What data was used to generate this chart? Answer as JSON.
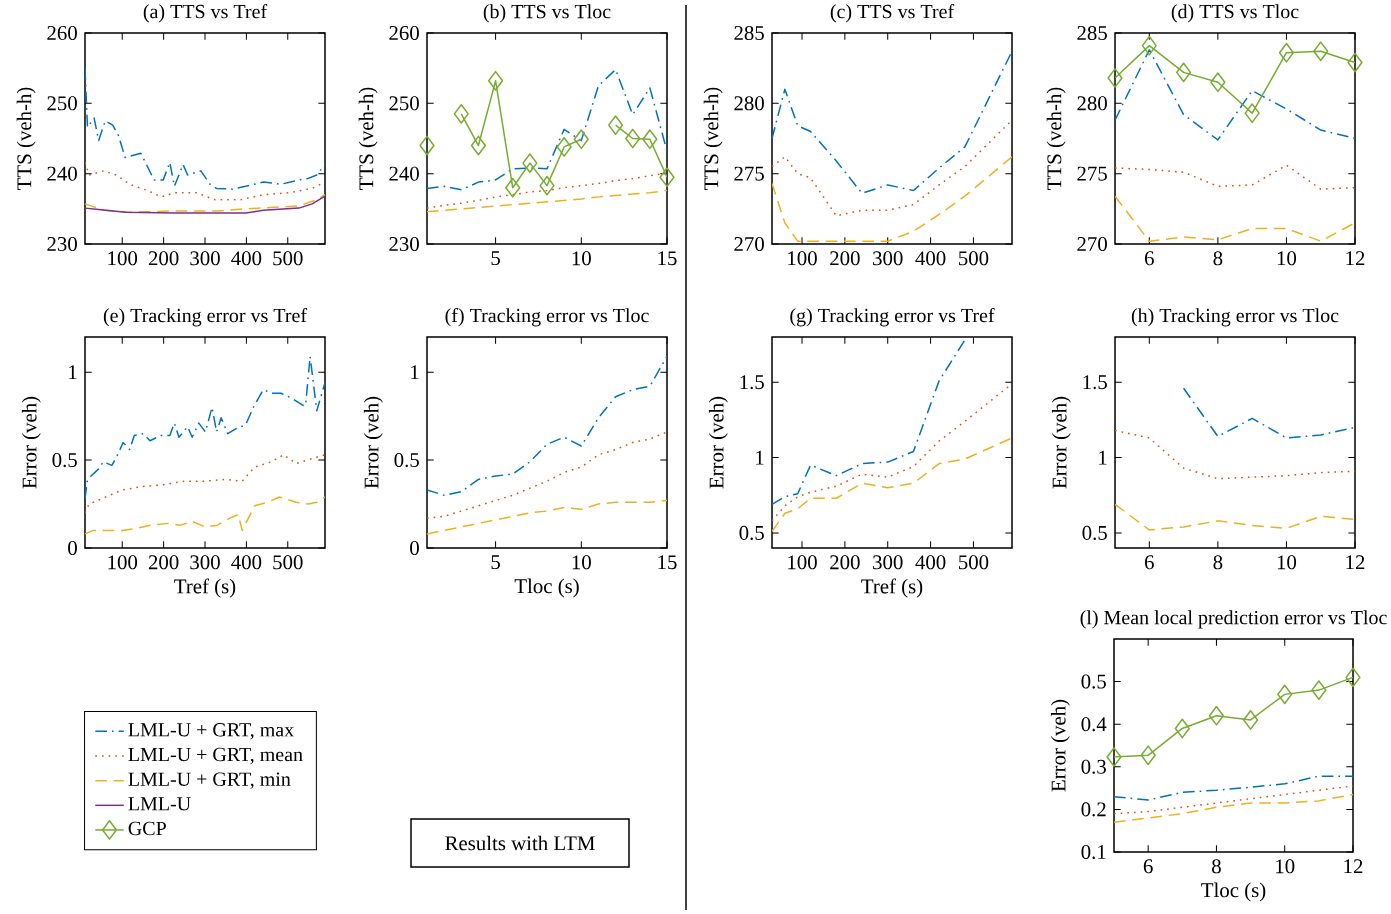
{
  "chart_data": [
    {
      "type": "line",
      "title": "(a) TTS vs Tref",
      "ylabel": "TTS (veh-h)",
      "xlim": [
        10,
        590
      ],
      "xticks": [
        100,
        200,
        300,
        400,
        500
      ],
      "ylim": [
        230,
        260
      ],
      "yticks": [
        230,
        240,
        250,
        260
      ],
      "series": [
        {
          "name": "LML-U + GRT, max",
          "color": "#0072bd",
          "line_style": "dashdot",
          "x": [
            10,
            16,
            32,
            43,
            59,
            77,
            91,
            107,
            145,
            177,
            199,
            215,
            226,
            247,
            258,
            290,
            312,
            328,
            366,
            398,
            441,
            484,
            527,
            548,
            570,
            590
          ],
          "values": [
            255.0,
            246.6,
            247.9,
            244.7,
            247.5,
            246.9,
            245.4,
            242.3,
            242.9,
            239.1,
            239.1,
            241.6,
            238.2,
            241.3,
            239.8,
            240.4,
            238.5,
            237.9,
            237.8,
            238.2,
            238.8,
            238.5,
            239.1,
            239.3,
            239.8,
            241.3
          ]
        },
        {
          "name": "LML-U + GRT, mean",
          "color": "#d95319",
          "line_style": "dotted",
          "x": [
            10,
            20,
            55,
            86,
            118,
            161,
            194,
            226,
            280,
            323,
            387,
            441,
            505,
            559,
            590
          ],
          "values": [
            241.6,
            239.8,
            240.4,
            239.8,
            238.5,
            237.6,
            236.7,
            237.3,
            237.3,
            236.3,
            236.3,
            237.0,
            237.3,
            237.9,
            238.8
          ]
        },
        {
          "name": "LML-U + GRT, min",
          "color": "#edb120",
          "line_style": "dashed",
          "x": [
            10,
            55,
            118,
            226,
            333,
            398,
            527,
            570,
            590
          ],
          "values": [
            235.7,
            234.8,
            234.5,
            234.7,
            234.7,
            235.0,
            235.4,
            236.3,
            237.0
          ]
        },
        {
          "name": "LML-U",
          "color": "#7e2f8e",
          "line_style": "solid",
          "x": [
            10,
            43,
            108,
            226,
            398,
            441,
            527,
            559,
            590
          ],
          "values": [
            235.1,
            234.9,
            234.5,
            234.4,
            234.4,
            234.8,
            235.1,
            235.7,
            236.8
          ]
        }
      ]
    },
    {
      "type": "line",
      "title": "(b) TTS vs Tloc",
      "ylabel": "TTS (veh-h)",
      "xlim": [
        1,
        15
      ],
      "xticks": [
        5,
        10,
        15
      ],
      "ylim": [
        230,
        260
      ],
      "yticks": [
        230,
        240,
        250,
        260
      ],
      "legend": "bottom left",
      "x": [
        1,
        2,
        3,
        4,
        5,
        6,
        7,
        8,
        9,
        10,
        11,
        12,
        13,
        14,
        15
      ],
      "series": [
        {
          "color": "#0072bd",
          "line_style": "dashdot",
          "values": [
            237.9,
            238.2,
            237.7,
            238.8,
            239.1,
            240.7,
            240.8,
            240.7,
            246.3,
            244.7,
            252.5,
            254.8,
            248.4,
            252.2,
            243.2
          ]
        },
        {
          "color": "#d95319",
          "line_style": "dotted",
          "values": [
            235.1,
            235.5,
            235.8,
            236.2,
            236.7,
            237.0,
            237.4,
            237.6,
            238.0,
            238.3,
            238.6,
            239.0,
            239.3,
            239.7,
            240.1
          ]
        },
        {
          "color": "#edb120",
          "line_style": "dashed",
          "values": [
            234.6,
            234.8,
            235.0,
            235.2,
            235.4,
            235.6,
            235.8,
            236.0,
            236.2,
            236.4,
            236.7,
            236.9,
            237.1,
            237.3,
            237.6
          ]
        },
        {
          "name": "GCP",
          "color": "#77ac30",
          "line_style": "solid",
          "marker": "diamond",
          "values": [
            244.0,
            null,
            248.5,
            244.0,
            253.2,
            238.0,
            241.5,
            238.3,
            243.8,
            244.9,
            null,
            246.9,
            245.0,
            244.9,
            239.5
          ]
        }
      ]
    },
    {
      "type": "line",
      "title": "(c) TTS vs Tref",
      "ylabel": "TTS (veh-h)",
      "xlim": [
        30,
        590
      ],
      "xticks": [
        100,
        200,
        300,
        400,
        500
      ],
      "ylim": [
        270,
        285
      ],
      "yticks": [
        270,
        275,
        280,
        285
      ],
      "series": [
        {
          "color": "#0072bd",
          "line_style": "dashdot",
          "x": [
            30,
            60,
            90,
            120,
            180,
            240,
            300,
            360,
            420,
            480,
            590
          ],
          "values": [
            277.5,
            281.0,
            278.4,
            278.0,
            275.9,
            273.6,
            274.2,
            273.8,
            275.4,
            276.9,
            283.7
          ]
        },
        {
          "color": "#d95319",
          "line_style": "dotted",
          "x": [
            30,
            60,
            90,
            120,
            180,
            240,
            300,
            360,
            420,
            480,
            590
          ],
          "values": [
            275.5,
            276.2,
            275.0,
            274.7,
            272.0,
            272.4,
            272.4,
            272.8,
            274.2,
            275.5,
            278.8
          ]
        },
        {
          "color": "#edb120",
          "line_style": "dashed",
          "x": [
            30,
            60,
            90,
            120,
            180,
            240,
            300,
            360,
            420,
            480,
            590
          ],
          "values": [
            274.3,
            271.5,
            270.2,
            270.2,
            270.2,
            270.2,
            270.2,
            270.9,
            272.1,
            273.4,
            276.2
          ]
        }
      ]
    },
    {
      "type": "line",
      "title": "(d) TTS vs Tloc",
      "ylabel": "TTS (veh-h)",
      "xlim": [
        5,
        12
      ],
      "xticks": [
        6,
        8,
        10,
        12
      ],
      "ylim": [
        270,
        285
      ],
      "yticks": [
        270,
        275,
        280,
        285
      ],
      "x": [
        5,
        6,
        7,
        8,
        9,
        10,
        11,
        12
      ],
      "series": [
        {
          "color": "#0072bd",
          "line_style": "dashdot",
          "values": [
            278.8,
            283.8,
            279.2,
            277.4,
            280.9,
            279.6,
            278.1,
            277.5
          ]
        },
        {
          "color": "#d95319",
          "line_style": "dotted",
          "values": [
            275.4,
            275.3,
            275.1,
            274.1,
            274.2,
            275.6,
            273.9,
            274.0
          ]
        },
        {
          "color": "#edb120",
          "line_style": "dashed",
          "values": [
            273.4,
            270.2,
            270.5,
            270.3,
            271.1,
            271.1,
            270.2,
            271.5
          ]
        },
        {
          "color": "#77ac30",
          "line_style": "solid",
          "marker": "diamond",
          "values": [
            281.8,
            284.1,
            282.2,
            281.5,
            279.3,
            283.6,
            283.7,
            282.9
          ]
        }
      ]
    },
    {
      "type": "line",
      "title": "(e) Tracking error vs Tref",
      "xlabel": "Tref (s)",
      "ylabel": "Error (veh)",
      "xlim": [
        10,
        590
      ],
      "xticks": [
        100,
        200,
        300,
        400,
        500
      ],
      "ylim": [
        0,
        1.2
      ],
      "yticks": [
        0,
        0.5,
        1
      ],
      "series": [
        {
          "color": "#0072bd",
          "line_style": "dashdot",
          "x": [
            10,
            16,
            43,
            54,
            75,
            91,
            102,
            118,
            129,
            151,
            167,
            194,
            215,
            226,
            237,
            258,
            269,
            285,
            301,
            317,
            328,
            339,
            355,
            376,
            398,
            419,
            441,
            462,
            484,
            511,
            538,
            543,
            554,
            570,
            590
          ],
          "values": [
            0.28,
            0.39,
            0.45,
            0.49,
            0.47,
            0.54,
            0.6,
            0.56,
            0.64,
            0.65,
            0.61,
            0.64,
            0.64,
            0.71,
            0.63,
            0.69,
            0.63,
            0.71,
            0.66,
            0.8,
            0.66,
            0.74,
            0.65,
            0.68,
            0.7,
            0.81,
            0.9,
            0.88,
            0.88,
            0.85,
            0.81,
            0.81,
            1.09,
            0.78,
            0.94
          ]
        },
        {
          "color": "#d95319",
          "line_style": "dotted",
          "x": [
            10,
            20,
            60,
            100,
            150,
            200,
            250,
            300,
            350,
            390,
            420,
            460,
            490,
            520,
            560,
            590
          ],
          "values": [
            0.2,
            0.25,
            0.29,
            0.33,
            0.35,
            0.36,
            0.38,
            0.38,
            0.39,
            0.38,
            0.46,
            0.49,
            0.53,
            0.48,
            0.51,
            0.53
          ]
        },
        {
          "color": "#edb120",
          "line_style": "dashed",
          "x": [
            10,
            30,
            60,
            100,
            130,
            170,
            210,
            240,
            270,
            300,
            330,
            360,
            380,
            390,
            420,
            450,
            480,
            520,
            550,
            570,
            590
          ],
          "values": [
            0.08,
            0.1,
            0.1,
            0.1,
            0.11,
            0.13,
            0.14,
            0.13,
            0.15,
            0.12,
            0.13,
            0.17,
            0.19,
            0.1,
            0.24,
            0.26,
            0.29,
            0.26,
            0.25,
            0.26,
            0.29
          ]
        }
      ]
    },
    {
      "type": "line",
      "title": "(f) Tracking error vs Tloc",
      "xlabel": "Tloc (s)",
      "ylabel": "Error (veh)",
      "xlim": [
        1,
        15
      ],
      "xticks": [
        5,
        10,
        15
      ],
      "ylim": [
        0,
        1.2
      ],
      "yticks": [
        0,
        0.5,
        1
      ],
      "annotations": [
        "Results with LTM"
      ],
      "x": [
        1,
        2,
        3,
        4,
        5,
        6,
        7,
        8,
        9,
        10,
        11,
        12,
        13,
        14,
        15
      ],
      "series": [
        {
          "color": "#0072bd",
          "line_style": "dashdot",
          "values": [
            0.33,
            0.3,
            0.32,
            0.39,
            0.41,
            0.42,
            0.49,
            0.59,
            0.63,
            0.58,
            0.74,
            0.86,
            0.9,
            0.92,
            1.09
          ]
        },
        {
          "color": "#d95319",
          "line_style": "dotted",
          "values": [
            0.17,
            0.18,
            0.21,
            0.24,
            0.27,
            0.3,
            0.34,
            0.38,
            0.43,
            0.46,
            0.53,
            0.56,
            0.6,
            0.62,
            0.66
          ]
        },
        {
          "color": "#edb120",
          "line_style": "dashed",
          "values": [
            0.08,
            0.1,
            0.12,
            0.14,
            0.16,
            0.18,
            0.2,
            0.21,
            0.23,
            0.22,
            0.25,
            0.26,
            0.26,
            0.26,
            0.27
          ]
        }
      ]
    },
    {
      "type": "line",
      "title": "(g) Tracking error vs Tref",
      "xlabel": "Tref (s)",
      "ylabel": "Error (veh)",
      "xlim": [
        30,
        590
      ],
      "xticks": [
        100,
        200,
        300,
        400,
        500
      ],
      "ylim": [
        0.4,
        1.8
      ],
      "yticks": [
        0.5,
        1,
        1.5
      ],
      "series": [
        {
          "color": "#0072bd",
          "line_style": "dashdot",
          "x": [
            30,
            60,
            90,
            120,
            180,
            240,
            300,
            360,
            420,
            480
          ],
          "values": [
            0.69,
            0.74,
            0.76,
            0.95,
            0.88,
            0.96,
            0.97,
            1.04,
            1.51,
            1.78
          ]
        },
        {
          "color": "#d95319",
          "line_style": "dotted",
          "x": [
            30,
            60,
            90,
            120,
            180,
            240,
            300,
            360,
            420,
            480,
            590
          ],
          "values": [
            0.58,
            0.68,
            0.74,
            0.77,
            0.81,
            0.89,
            0.87,
            0.94,
            1.11,
            1.24,
            1.49
          ]
        },
        {
          "color": "#edb120",
          "line_style": "dashed",
          "x": [
            30,
            60,
            90,
            120,
            180,
            240,
            300,
            360,
            420,
            480,
            590
          ],
          "values": [
            0.51,
            0.63,
            0.66,
            0.73,
            0.73,
            0.83,
            0.8,
            0.83,
            0.96,
            0.99,
            1.13
          ]
        }
      ]
    },
    {
      "type": "line",
      "title": "(h) Tracking error vs Tloc",
      "ylabel": "Error (veh)",
      "xlim": [
        5,
        12
      ],
      "xticks": [
        6,
        8,
        10,
        12
      ],
      "ylim": [
        0.4,
        1.8
      ],
      "yticks": [
        0.5,
        1,
        1.5
      ],
      "x": [
        5,
        6,
        7,
        8,
        9,
        10,
        11,
        12
      ],
      "series": [
        {
          "color": "#0072bd",
          "line_style": "dashdot",
          "values": [
            null,
            null,
            1.46,
            1.14,
            1.26,
            1.13,
            1.15,
            1.2
          ]
        },
        {
          "color": "#d95319",
          "line_style": "dotted",
          "values": [
            1.18,
            1.13,
            0.93,
            0.86,
            0.87,
            0.88,
            0.9,
            0.91
          ]
        },
        {
          "color": "#edb120",
          "line_style": "dashed",
          "values": [
            0.69,
            0.52,
            0.54,
            0.58,
            0.55,
            0.53,
            0.61,
            0.59
          ]
        }
      ]
    },
    {
      "type": "line",
      "title": "(l) Mean local prediction error vs Tloc",
      "xlabel": "Tloc (s)",
      "ylabel": "Error (veh)",
      "xlim": [
        5,
        12
      ],
      "xticks": [
        6,
        8,
        10,
        12
      ],
      "ylim": [
        0.1,
        0.6
      ],
      "yticks": [
        0.1,
        0.2,
        0.3,
        0.4,
        0.5
      ],
      "x": [
        5,
        6,
        7,
        8,
        9,
        10,
        11,
        12
      ],
      "series": [
        {
          "color": "#0072bd",
          "line_style": "dashdot",
          "values": [
            0.23,
            0.222,
            0.24,
            0.245,
            0.252,
            0.26,
            0.278,
            0.278
          ]
        },
        {
          "color": "#d95319",
          "line_style": "dotted",
          "values": [
            0.19,
            0.195,
            0.205,
            0.215,
            0.225,
            0.235,
            0.245,
            0.255
          ]
        },
        {
          "color": "#edb120",
          "line_style": "dashed",
          "values": [
            0.17,
            0.18,
            0.19,
            0.205,
            0.215,
            0.215,
            0.22,
            0.235
          ]
        },
        {
          "color": "#77ac30",
          "line_style": "solid",
          "marker": "diamond",
          "values": [
            0.323,
            0.327,
            0.39,
            0.42,
            0.41,
            0.47,
            0.48,
            0.51
          ]
        }
      ]
    }
  ]
}
